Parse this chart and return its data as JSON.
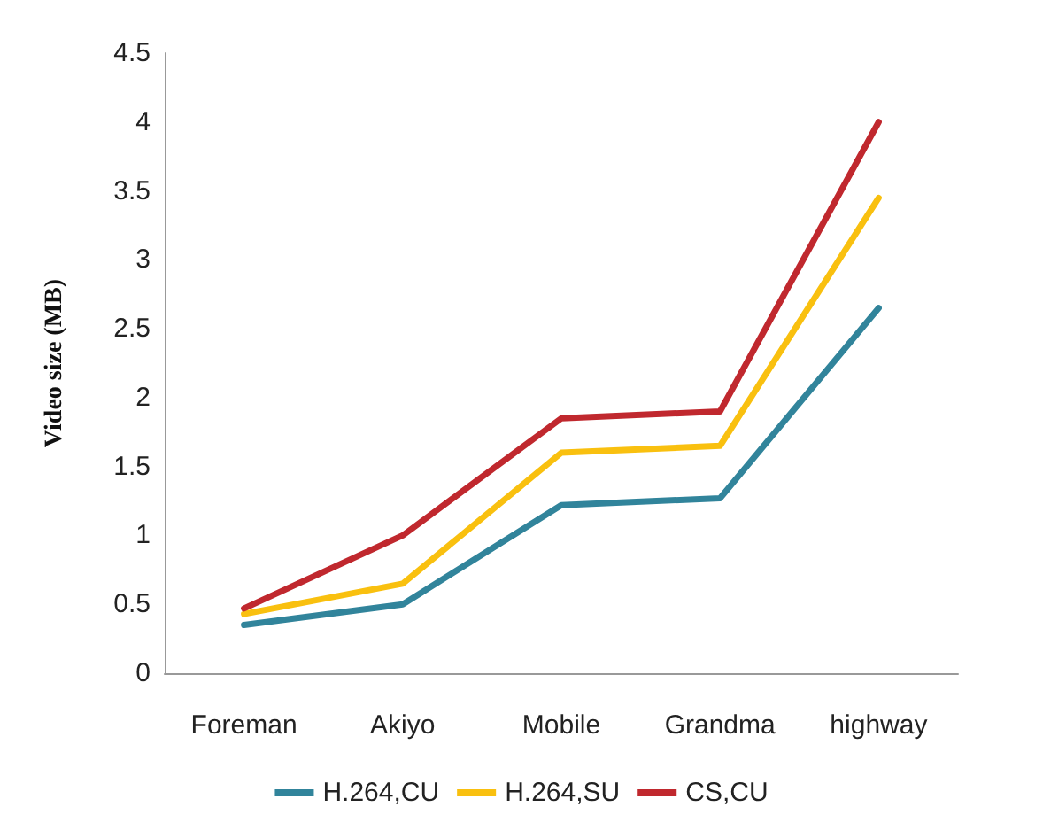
{
  "chart_data": {
    "type": "line",
    "ylabel": "Video size (MB)",
    "categories": [
      "Foreman",
      "Akiyo",
      "Mobile",
      "Grandma",
      "highway"
    ],
    "series": [
      {
        "name": "H.264,CU",
        "color": "#31849b",
        "values": [
          0.35,
          0.5,
          1.22,
          1.27,
          2.65
        ]
      },
      {
        "name": "H.264,SU",
        "color": "#f9c00f",
        "values": [
          0.43,
          0.65,
          1.6,
          1.65,
          3.45
        ]
      },
      {
        "name": "CS,CU",
        "color": "#c0282e",
        "values": [
          0.47,
          1.0,
          1.85,
          1.9,
          4.0
        ]
      }
    ],
    "ylim": [
      0,
      4.5
    ],
    "yticks": [
      0,
      0.5,
      1,
      1.5,
      2,
      2.5,
      3,
      3.5,
      4,
      4.5
    ],
    "grid": false,
    "legend": "bottom",
    "marker": "none",
    "line_style": "solid"
  }
}
